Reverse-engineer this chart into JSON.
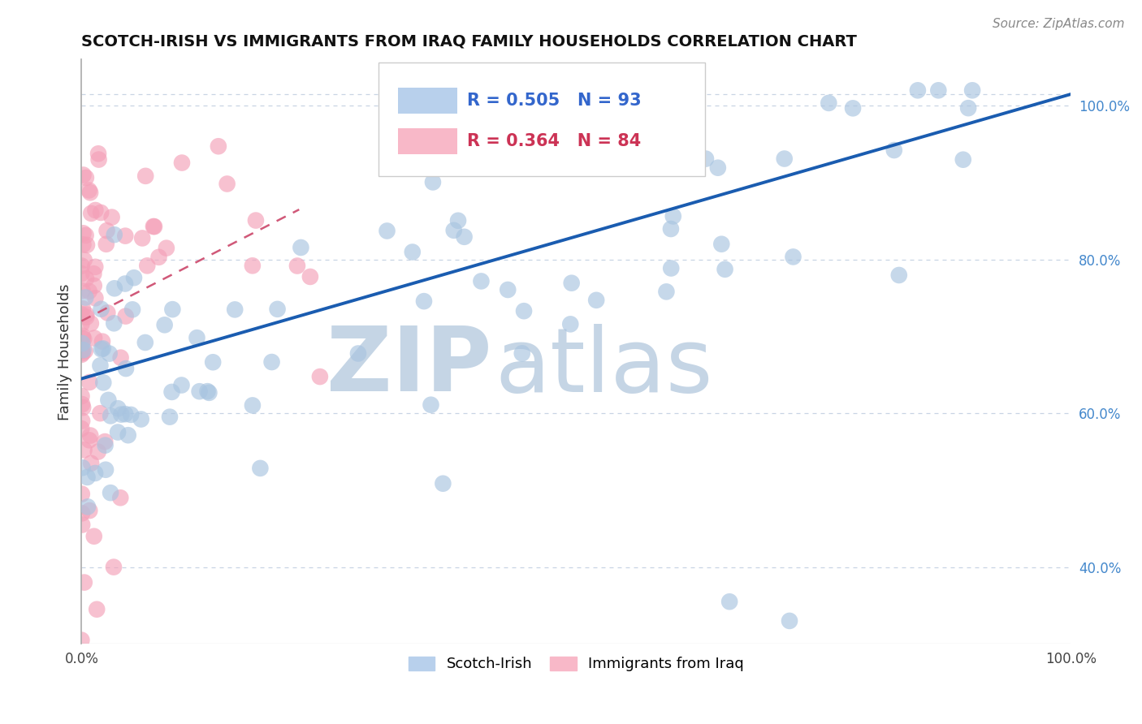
{
  "title": "SCOTCH-IRISH VS IMMIGRANTS FROM IRAQ FAMILY HOUSEHOLDS CORRELATION CHART",
  "source": "Source: ZipAtlas.com",
  "ylabel": "Family Households",
  "xlim": [
    0,
    1
  ],
  "ylim": [
    0.3,
    1.06
  ],
  "ytick_labels": [
    "40.0%",
    "60.0%",
    "80.0%",
    "100.0%"
  ],
  "yticks": [
    0.4,
    0.6,
    0.8,
    1.0
  ],
  "blue_R": 0.505,
  "blue_N": 93,
  "pink_R": 0.364,
  "pink_N": 84,
  "blue_color": "#a8c4e0",
  "pink_color": "#f4a0b8",
  "blue_line_color": "#1a5cb0",
  "pink_line_color": "#d05878",
  "watermark_zip": "ZIP",
  "watermark_atlas": "atlas",
  "watermark_color": "#c5d5e5",
  "legend_blue_label": "Scotch-Irish",
  "legend_pink_label": "Immigrants from Iraq",
  "blue_line_x": [
    0.0,
    1.0
  ],
  "blue_line_y": [
    0.645,
    1.015
  ],
  "pink_line_x": [
    0.0,
    0.22
  ],
  "pink_line_y": [
    0.72,
    0.865
  ],
  "grid_color": "#c8d4e4",
  "top_line_y": 1.015
}
